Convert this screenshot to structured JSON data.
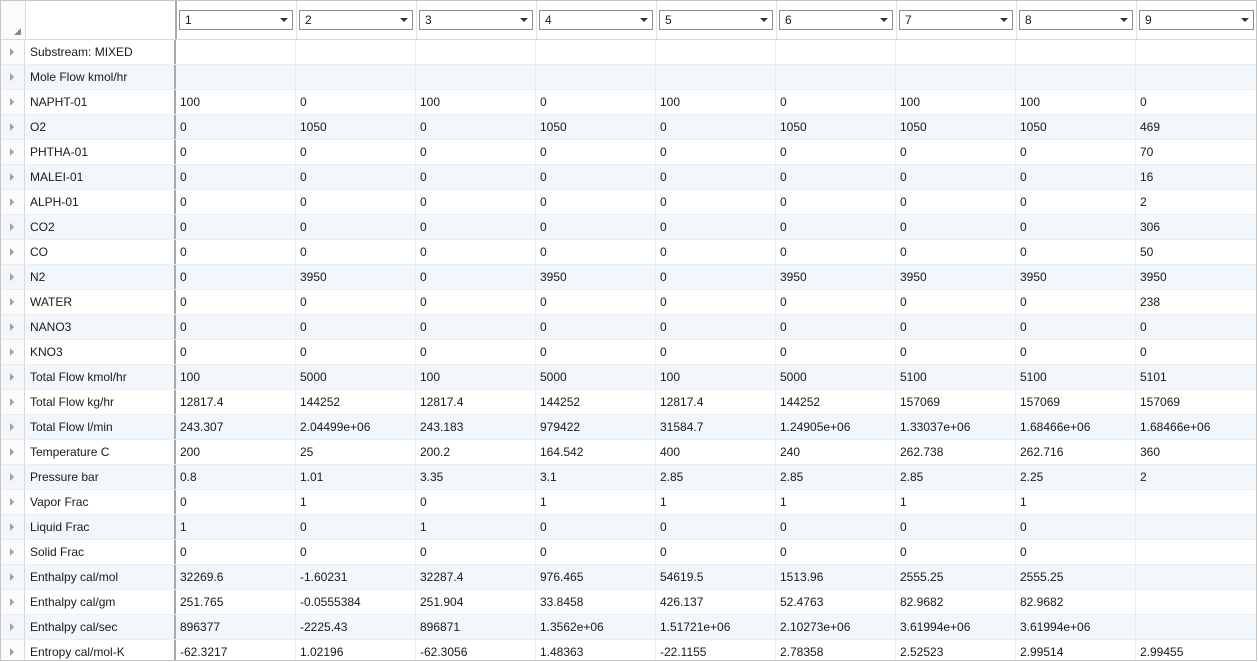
{
  "columns": [
    "1",
    "2",
    "3",
    "4",
    "5",
    "6",
    "7",
    "8",
    "9"
  ],
  "rows": [
    {
      "label": "Substream: MIXED",
      "values": [
        "",
        "",
        "",
        "",
        "",
        "",
        "",
        "",
        ""
      ]
    },
    {
      "label": "Mole Flow kmol/hr",
      "values": [
        "",
        "",
        "",
        "",
        "",
        "",
        "",
        "",
        ""
      ]
    },
    {
      "label": "NAPHT-01",
      "values": [
        "100",
        "0",
        "100",
        "0",
        "100",
        "0",
        "100",
        "100",
        "0"
      ]
    },
    {
      "label": "O2",
      "values": [
        "0",
        "1050",
        "0",
        "1050",
        "0",
        "1050",
        "1050",
        "1050",
        "469"
      ]
    },
    {
      "label": "PHTHA-01",
      "values": [
        "0",
        "0",
        "0",
        "0",
        "0",
        "0",
        "0",
        "0",
        "70"
      ]
    },
    {
      "label": "MALEI-01",
      "values": [
        "0",
        "0",
        "0",
        "0",
        "0",
        "0",
        "0",
        "0",
        "16"
      ]
    },
    {
      "label": "ALPH-01",
      "values": [
        "0",
        "0",
        "0",
        "0",
        "0",
        "0",
        "0",
        "0",
        "2"
      ]
    },
    {
      "label": "CO2",
      "values": [
        "0",
        "0",
        "0",
        "0",
        "0",
        "0",
        "0",
        "0",
        "306"
      ]
    },
    {
      "label": "CO",
      "values": [
        "0",
        "0",
        "0",
        "0",
        "0",
        "0",
        "0",
        "0",
        "50"
      ]
    },
    {
      "label": "N2",
      "values": [
        "0",
        "3950",
        "0",
        "3950",
        "0",
        "3950",
        "3950",
        "3950",
        "3950"
      ]
    },
    {
      "label": "WATER",
      "values": [
        "0",
        "0",
        "0",
        "0",
        "0",
        "0",
        "0",
        "0",
        "238"
      ]
    },
    {
      "label": "NANO3",
      "values": [
        "0",
        "0",
        "0",
        "0",
        "0",
        "0",
        "0",
        "0",
        "0"
      ]
    },
    {
      "label": "KNO3",
      "values": [
        "0",
        "0",
        "0",
        "0",
        "0",
        "0",
        "0",
        "0",
        "0"
      ]
    },
    {
      "label": "Total Flow kmol/hr",
      "values": [
        "100",
        "5000",
        "100",
        "5000",
        "100",
        "5000",
        "5100",
        "5100",
        "5101"
      ]
    },
    {
      "label": "Total Flow kg/hr",
      "values": [
        "12817.4",
        "144252",
        "12817.4",
        "144252",
        "12817.4",
        "144252",
        "157069",
        "157069",
        "157069"
      ]
    },
    {
      "label": "Total Flow l/min",
      "values": [
        "243.307",
        "2.04499e+06",
        "243.183",
        "979422",
        "31584.7",
        "1.24905e+06",
        "1.33037e+06",
        "1.68466e+06",
        "1.68466e+06"
      ]
    },
    {
      "label": "Temperature C",
      "values": [
        "200",
        "25",
        "200.2",
        "164.542",
        "400",
        "240",
        "262.738",
        "262.716",
        "360"
      ]
    },
    {
      "label": "Pressure bar",
      "values": [
        "0.8",
        "1.01",
        "3.35",
        "3.1",
        "2.85",
        "2.85",
        "2.85",
        "2.25",
        "2"
      ]
    },
    {
      "label": "Vapor Frac",
      "values": [
        "0",
        "1",
        "0",
        "1",
        "1",
        "1",
        "1",
        "1",
        ""
      ]
    },
    {
      "label": "Liquid Frac",
      "values": [
        "1",
        "0",
        "1",
        "0",
        "0",
        "0",
        "0",
        "0",
        ""
      ]
    },
    {
      "label": "Solid Frac",
      "values": [
        "0",
        "0",
        "0",
        "0",
        "0",
        "0",
        "0",
        "0",
        ""
      ]
    },
    {
      "label": "Enthalpy cal/mol",
      "values": [
        "32269.6",
        "-1.60231",
        "32287.4",
        "976.465",
        "54619.5",
        "1513.96",
        "2555.25",
        "2555.25",
        ""
      ]
    },
    {
      "label": "Enthalpy cal/gm",
      "values": [
        "251.765",
        "-0.0555384",
        "251.904",
        "33.8458",
        "426.137",
        "52.4763",
        "82.9682",
        "82.9682",
        ""
      ]
    },
    {
      "label": "Enthalpy cal/sec",
      "values": [
        "896377",
        "-2225.43",
        "896871",
        "1.3562e+06",
        "1.51721e+06",
        "2.10273e+06",
        "3.61994e+06",
        "3.61994e+06",
        ""
      ]
    },
    {
      "label": "Entropy cal/mol-K",
      "values": [
        "-62.3217",
        "1.02196",
        "-62.3056",
        "1.48363",
        "-22.1155",
        "2.78358",
        "2.52523",
        "2.99514",
        "2.99455"
      ]
    }
  ]
}
